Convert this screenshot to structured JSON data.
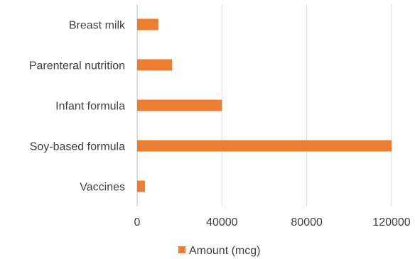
{
  "chart_data": {
    "type": "bar",
    "orientation": "horizontal",
    "categories": [
      "Breast milk",
      "Parenteral nutrition",
      "Infant formula",
      "Soy-based formula",
      "Vaccines"
    ],
    "series": [
      {
        "name": "Amount (mcg)",
        "values": [
          10000,
          16500,
          40000,
          120000,
          3700
        ],
        "color": "#ED7D31"
      }
    ],
    "xlim": [
      0,
      120000
    ],
    "xticks": [
      0,
      40000,
      80000,
      120000
    ],
    "xtick_labels": [
      "0",
      "40000",
      "80000",
      "120000"
    ],
    "grid": "vertical",
    "legend_position": "bottom",
    "colors": {
      "grid": "#d9d9d9",
      "axis": "#bfbfbf",
      "text": "#404040"
    }
  }
}
